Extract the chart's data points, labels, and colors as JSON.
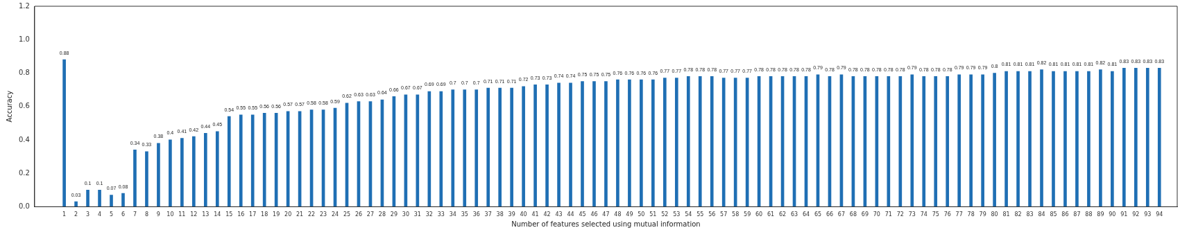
{
  "chart_data": {
    "type": "bar",
    "xlabel": "Number of features selected using mutual information",
    "ylabel": "Accuracy",
    "x": [
      1,
      2,
      3,
      4,
      5,
      6,
      7,
      8,
      9,
      10,
      11,
      12,
      13,
      14,
      15,
      16,
      17,
      18,
      19,
      20,
      21,
      22,
      23,
      24,
      25,
      26,
      27,
      28,
      29,
      30,
      31,
      32,
      33,
      34,
      35,
      36,
      37,
      38,
      39,
      40,
      41,
      42,
      43,
      44,
      45,
      46,
      47,
      48,
      49,
      50,
      51,
      52,
      53,
      54,
      55,
      56,
      57,
      58,
      59,
      60,
      61,
      62,
      63,
      64,
      65,
      66,
      67,
      68,
      69,
      70,
      71,
      72,
      73,
      74,
      75,
      76,
      77,
      78,
      79,
      80,
      81,
      82,
      83,
      84,
      85,
      86,
      87,
      88,
      89,
      90,
      91,
      92,
      93,
      94
    ],
    "values": [
      0.88,
      0.03,
      0.1,
      0.1,
      0.07,
      0.08,
      0.34,
      0.33,
      0.38,
      0.4,
      0.41,
      0.42,
      0.44,
      0.45,
      0.54,
      0.55,
      0.55,
      0.56,
      0.56,
      0.57,
      0.57,
      0.58,
      0.58,
      0.59,
      0.62,
      0.63,
      0.63,
      0.64,
      0.66,
      0.67,
      0.67,
      0.69,
      0.69,
      0.7,
      0.7,
      0.7,
      0.71,
      0.71,
      0.71,
      0.72,
      0.73,
      0.73,
      0.74,
      0.74,
      0.75,
      0.75,
      0.75,
      0.76,
      0.76,
      0.76,
      0.76,
      0.77,
      0.77,
      0.78,
      0.78,
      0.78,
      0.77,
      0.77,
      0.77,
      0.78,
      0.78,
      0.78,
      0.78,
      0.78,
      0.79,
      0.78,
      0.79,
      0.78,
      0.78,
      0.78,
      0.78,
      0.78,
      0.79,
      0.78,
      0.78,
      0.78,
      0.79,
      0.79,
      0.79,
      0.8,
      0.81,
      0.81,
      0.81,
      0.82,
      0.81,
      0.81,
      0.81,
      0.81,
      0.82,
      0.81,
      0.83,
      0.83,
      0.83,
      0.83
    ],
    "color": "#1f6fb4",
    "xlim": [
      -1,
      95
    ],
    "xticks": [
      1,
      2,
      3,
      4,
      5,
      6,
      7,
      8,
      9,
      10,
      11,
      12,
      13,
      14,
      15,
      16,
      17,
      18,
      19,
      20,
      21,
      22,
      23,
      24,
      25,
      26,
      27,
      28,
      29,
      30,
      31,
      32,
      33,
      34,
      35,
      36,
      37,
      38,
      39,
      40,
      41,
      42,
      43,
      44,
      45,
      46,
      47,
      48,
      49,
      50,
      51,
      52,
      53,
      54,
      55,
      56,
      57,
      58,
      59,
      60,
      61,
      62,
      63,
      64,
      65,
      66,
      67,
      68,
      69,
      70,
      71,
      72,
      73,
      74,
      75,
      76,
      77,
      78,
      79,
      80,
      81,
      82,
      83,
      84,
      85,
      86,
      87,
      88,
      89,
      90,
      91,
      92,
      93,
      94
    ],
    "ylim": [
      0,
      1.2
    ],
    "yticks": [
      {
        "value": 0,
        "label": "0.0"
      },
      {
        "value": 0.2,
        "label": "0.2"
      },
      {
        "value": 0.4,
        "label": "0.4"
      },
      {
        "value": 0.6,
        "label": "0.6"
      },
      {
        "value": 0.8,
        "label": "0.8"
      },
      {
        "value": 1,
        "label": "1.0"
      },
      {
        "value": 1.2,
        "label": "1.2"
      }
    ],
    "data_labels": true,
    "grid": false,
    "legend": false
  }
}
